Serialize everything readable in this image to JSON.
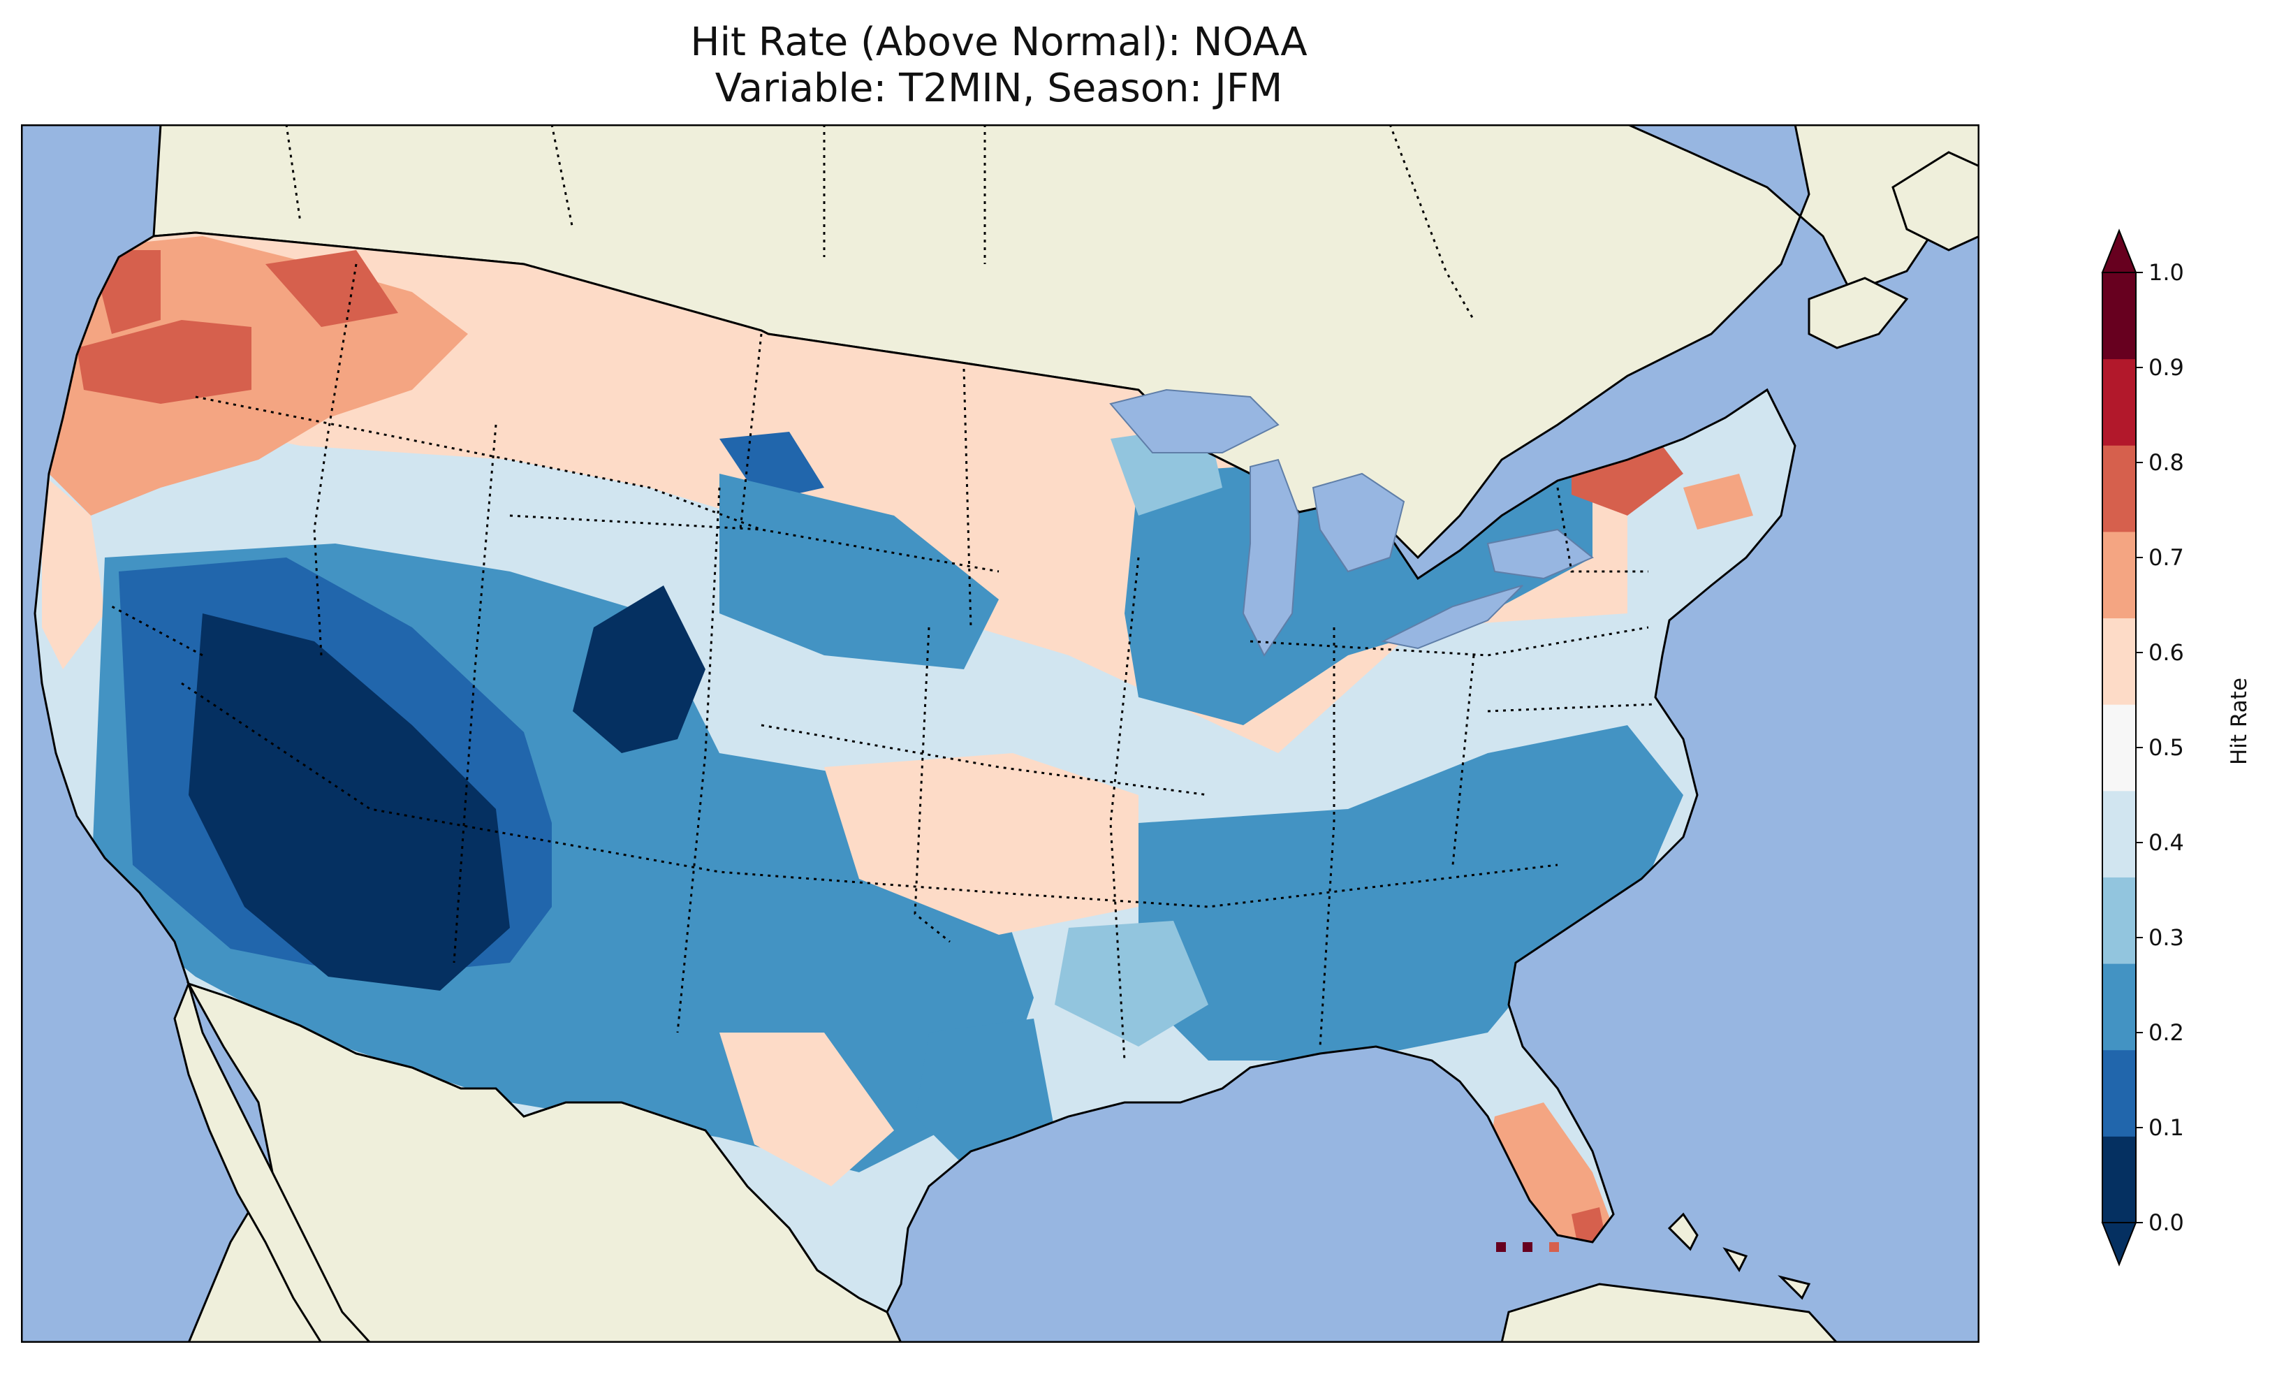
{
  "title": {
    "line1": "Hit Rate (Above Normal): NOAA",
    "line2": "Variable: T2MIN, Season: JFM"
  },
  "colorbar": {
    "label": "Hit Rate",
    "ticks": [
      "0.0",
      "0.1",
      "0.2",
      "0.3",
      "0.4",
      "0.5",
      "0.6",
      "0.7",
      "0.8",
      "0.9",
      "1.0"
    ],
    "colors": [
      "#053061",
      "#2166ac",
      "#4393c3",
      "#92c5de",
      "#d1e5f0",
      "#f7f7f7",
      "#fddbc7",
      "#f4a582",
      "#d6604d",
      "#b2182b",
      "#67001f"
    ],
    "extend": "both"
  },
  "map": {
    "ocean_color": "#97b6e1",
    "land_color": "#efefdb",
    "lake_color": "#97b6e1",
    "border_color": "#000000"
  }
}
